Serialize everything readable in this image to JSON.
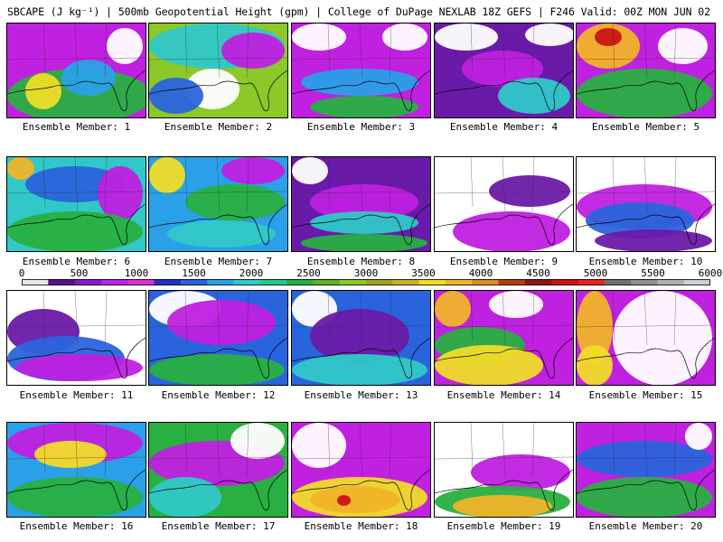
{
  "header": {
    "title": "SBCAPE (J kg⁻¹) | 500mb Geopotential Height (gpm) | College of DuPage NEXLAB 18Z GEFS | F246 Valid: 00Z MON JUN 02 2025"
  },
  "colorbar": {
    "tick_labels": [
      "0",
      "500",
      "1000",
      "1500",
      "2000",
      "2500",
      "3000",
      "3500",
      "4000",
      "4500",
      "5000",
      "5500",
      "6000"
    ],
    "colors": [
      "#e8e8e8",
      "#5a0f8c",
      "#8a18c8",
      "#c020e0",
      "#d830d8",
      "#2030c8",
      "#2a64dc",
      "#2aa0e8",
      "#30c8c8",
      "#28c88c",
      "#28b040",
      "#5ab428",
      "#8cc828",
      "#a0a028",
      "#c8b428",
      "#f0dc28",
      "#f0b428",
      "#dc8c28",
      "#b43c14",
      "#8c1414",
      "#c81414",
      "#f01e1e",
      "#707070",
      "#909090",
      "#b0b0b0",
      "#c8d0dc"
    ]
  },
  "members": [
    {
      "label": "Ensemble Member: 1"
    },
    {
      "label": "Ensemble Member: 2"
    },
    {
      "label": "Ensemble Member: 3"
    },
    {
      "label": "Ensemble Member: 4"
    },
    {
      "label": "Ensemble Member: 5"
    },
    {
      "label": "Ensemble Member: 6"
    },
    {
      "label": "Ensemble Member: 7"
    },
    {
      "label": "Ensemble Member: 8"
    },
    {
      "label": "Ensemble Member: 9"
    },
    {
      "label": "Ensemble Member: 10"
    },
    {
      "label": "Ensemble Member: 11"
    },
    {
      "label": "Ensemble Member: 12"
    },
    {
      "label": "Ensemble Member: 13"
    },
    {
      "label": "Ensemble Member: 14"
    },
    {
      "label": "Ensemble Member: 15"
    },
    {
      "label": "Ensemble Member: 16"
    },
    {
      "label": "Ensemble Member: 17"
    },
    {
      "label": "Ensemble Member: 18"
    },
    {
      "label": "Ensemble Member: 19"
    },
    {
      "label": "Ensemble Member: 20"
    }
  ]
}
